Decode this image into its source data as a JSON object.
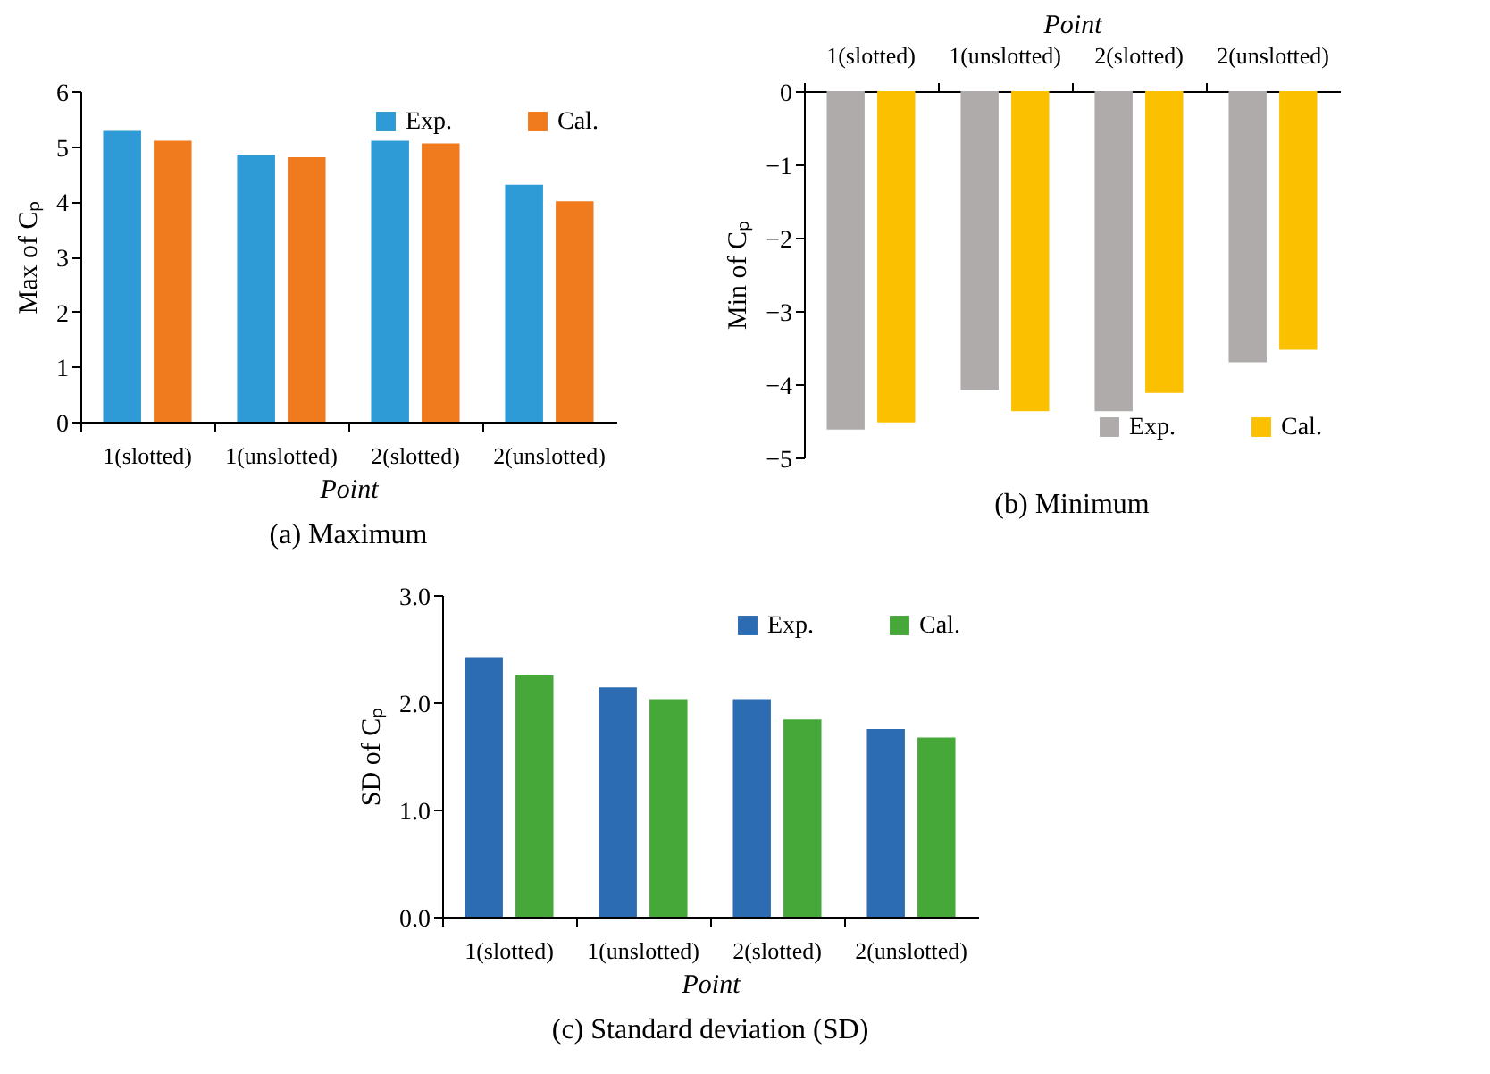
{
  "chart_data": [
    {
      "type": "bar",
      "title": "(a) Maximum",
      "xlabel": "Point",
      "ylabel": "Max of Cₚ",
      "categories": [
        "1(slotted)",
        "1(unslotted)",
        "2(slotted)",
        "2(unslotted)"
      ],
      "series": [
        {
          "name": "Exp.",
          "color": "#2e9bd6",
          "values": [
            5.28,
            4.85,
            5.1,
            4.3
          ]
        },
        {
          "name": "Cal.",
          "color": "#f07b1f",
          "values": [
            5.1,
            4.8,
            5.05,
            4.0
          ]
        }
      ],
      "ylim": [
        0,
        6
      ],
      "yticks": [
        0,
        1,
        2,
        3,
        4,
        5,
        6
      ],
      "legend": "top right"
    },
    {
      "type": "bar",
      "title": "(b) Minimum",
      "x2label": "Point",
      "ylabel": "Min of Cₚ",
      "categories": [
        "1(slotted)",
        "1(unslotted)",
        "2(slotted)",
        "2(unslotted)"
      ],
      "series": [
        {
          "name": "Exp.",
          "color": "#b0abab",
          "values": [
            -4.62,
            -4.08,
            -4.37,
            -3.7
          ]
        },
        {
          "name": "Cal.",
          "color": "#fbc100",
          "values": [
            -4.52,
            -4.37,
            -4.12,
            -3.53
          ]
        }
      ],
      "ylim": [
        -5,
        0
      ],
      "yticks": [
        -5,
        -4,
        -3,
        -2,
        -1,
        0
      ],
      "legend": "bottom right"
    },
    {
      "type": "bar",
      "title": "(c) Standard deviation (SD)",
      "xlabel": "Point",
      "ylabel": "SD of Cₚ",
      "categories": [
        "1(slotted)",
        "1(unslotted)",
        "2(slotted)",
        "2(unslotted)"
      ],
      "series": [
        {
          "name": "Exp.",
          "color": "#2b6cb3",
          "values": [
            2.42,
            2.14,
            2.03,
            1.75
          ]
        },
        {
          "name": "Cal.",
          "color": "#47a83a",
          "values": [
            2.25,
            2.03,
            1.84,
            1.67
          ]
        }
      ],
      "ylim": [
        0,
        3
      ],
      "yticks": [
        {
          "value": 0,
          "label": "0.0"
        },
        {
          "value": 1,
          "label": "1.0"
        },
        {
          "value": 2,
          "label": "2.0"
        },
        {
          "value": 3,
          "label": "3.0"
        }
      ],
      "legend": "top right"
    }
  ]
}
